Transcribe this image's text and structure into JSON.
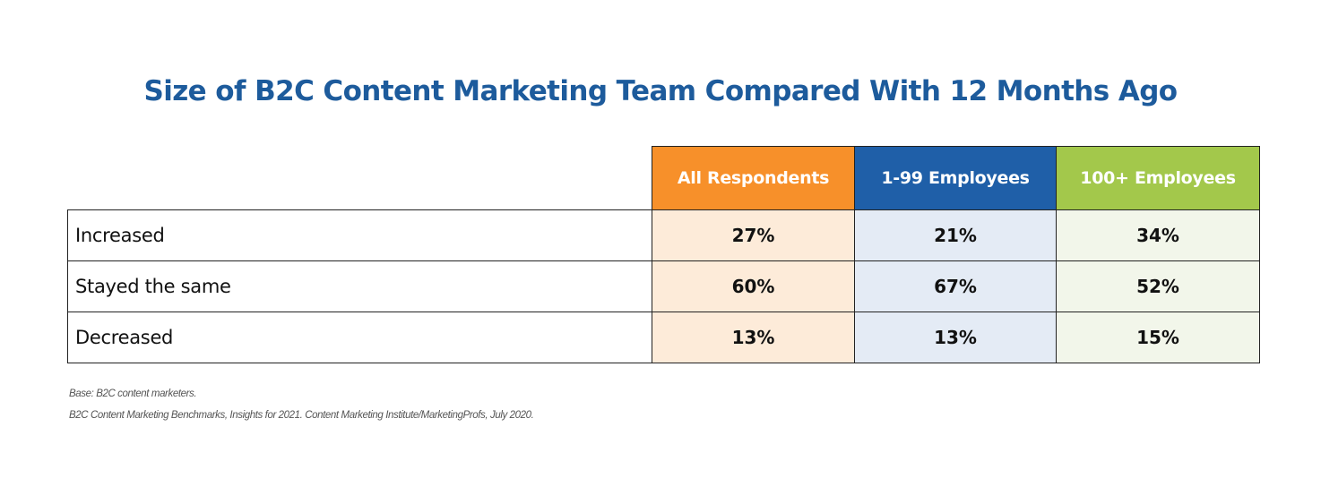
{
  "title": "Size of B2C Content Marketing Team Compared With 12 Months Ago",
  "chart_data": {
    "type": "table",
    "title": "Size of B2C Content Marketing Team Compared With 12 Months Ago",
    "columns": [
      {
        "label": "All Respondents",
        "header_color": "#f7902a",
        "cell_color": "#fdebd9"
      },
      {
        "label": "1-99 Employees",
        "header_color": "#1f5fa8",
        "cell_color": "#e4ebf5"
      },
      {
        "label": "100+ Employees",
        "header_color": "#a3c84b",
        "cell_color": "#f2f6ea"
      }
    ],
    "rows": [
      {
        "label": "Increased",
        "values": [
          "27%",
          "21%",
          "34%"
        ]
      },
      {
        "label": "Stayed the same",
        "values": [
          "60%",
          "67%",
          "52%"
        ]
      },
      {
        "label": "Decreased",
        "values": [
          "13%",
          "13%",
          "15%"
        ]
      }
    ]
  },
  "footnotes": {
    "base": "Base: B2C content marketers.",
    "source": "B2C Content Marketing Benchmarks, Insights for 2021. Content Marketing Institute/MarketingProfs, July 2020."
  }
}
